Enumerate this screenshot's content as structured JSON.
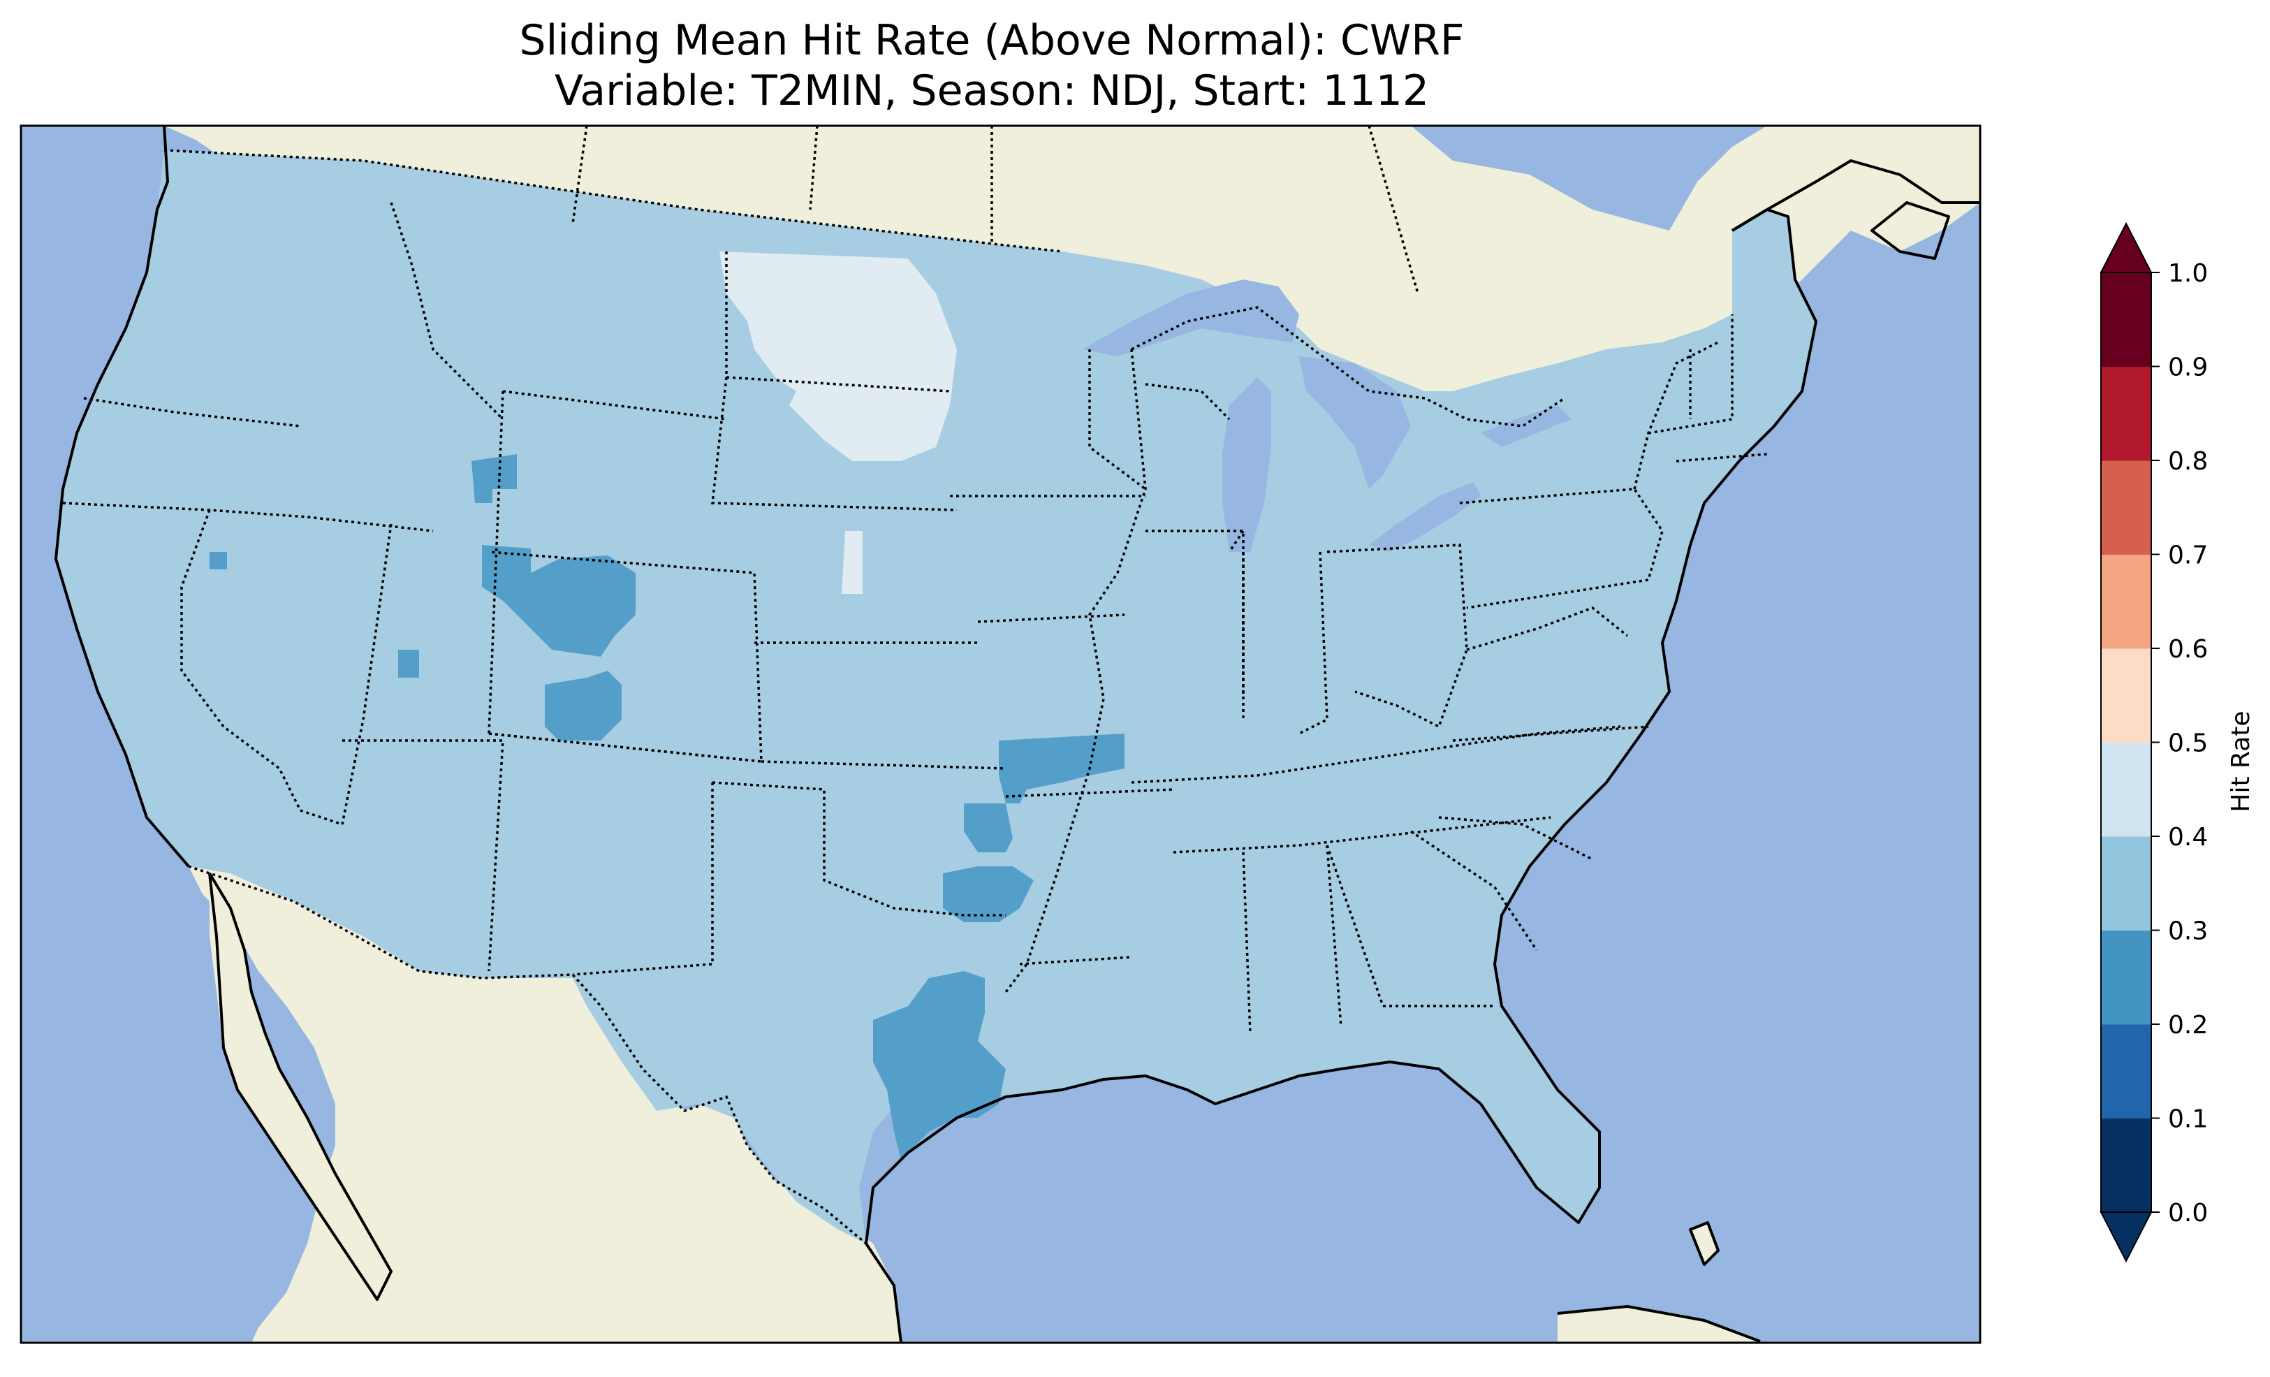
{
  "title": "Sliding Mean Hit Rate (Above Normal): CWRF",
  "subtitle": "Variable: T2MIN, Season: NDJ, Start: 1112",
  "colors": {
    "ocean": "#97b6e1",
    "land": "#efefdb",
    "field_0_3_to_0_4": "#a7cde2",
    "field_0_2_to_0_3": "#549fc9",
    "field_0_4_to_0_5": "#e0ebf2",
    "state_border": "#000000"
  },
  "colorbar": {
    "label": "Hit Rate",
    "ticks": [
      "0.0",
      "0.1",
      "0.2",
      "0.3",
      "0.4",
      "0.5",
      "0.6",
      "0.7",
      "0.8",
      "0.9",
      "1.0"
    ],
    "bins": [
      "#053061",
      "#2166ac",
      "#4393c3",
      "#92c5de",
      "#d1e5f0",
      "#fddbc7",
      "#f4a582",
      "#d6604d",
      "#b2182b",
      "#67001f"
    ],
    "extend": "both"
  },
  "map": {
    "region": "Contiguous United States",
    "dominant_range": "0.3–0.4",
    "low_regions_range": "0.2–0.3",
    "high_regions_range": "0.4–0.5"
  }
}
